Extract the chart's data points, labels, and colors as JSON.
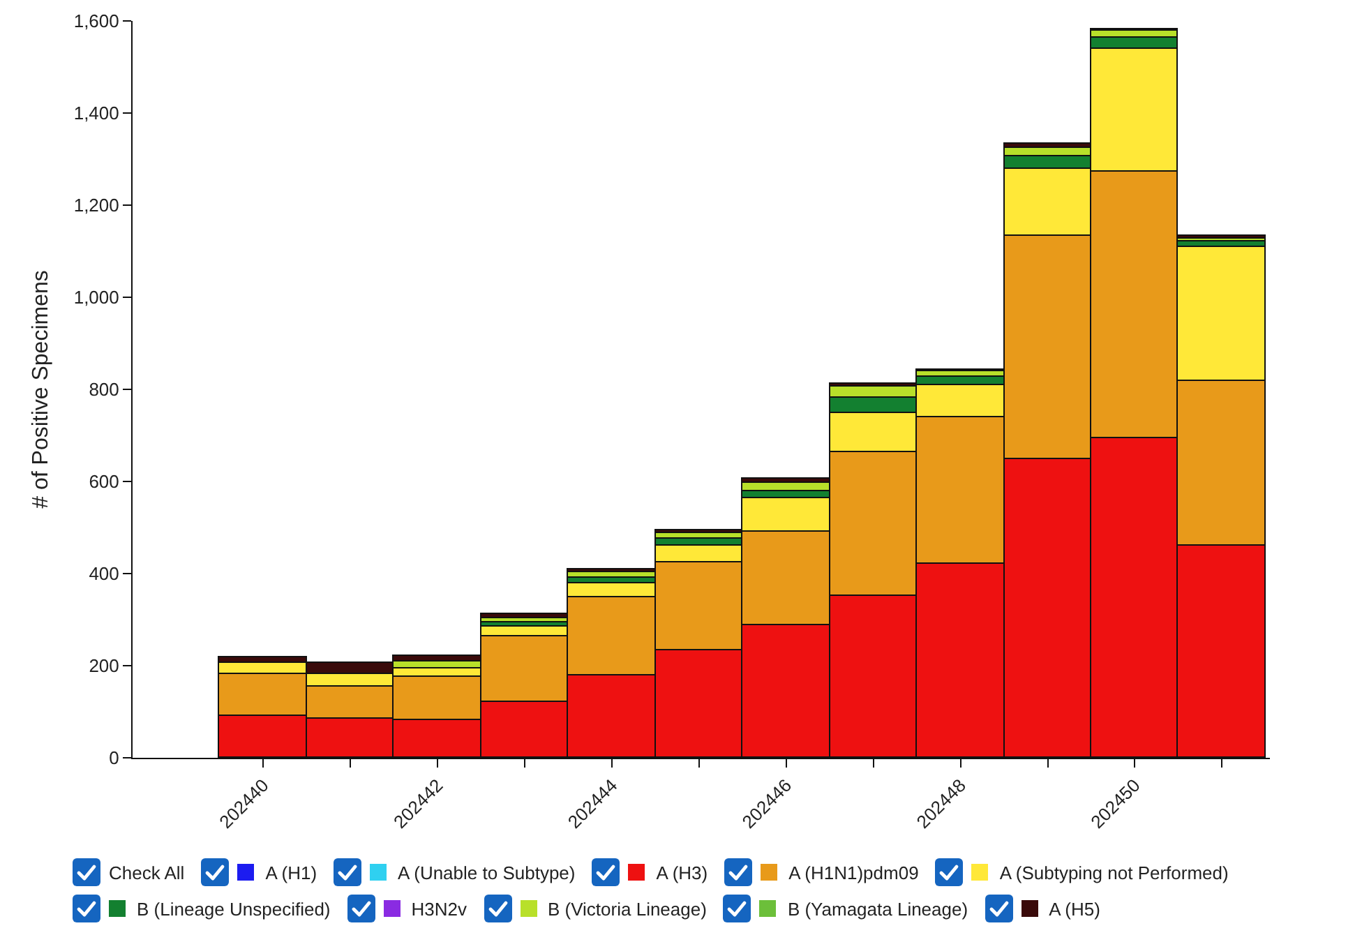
{
  "chart_data": {
    "type": "bar",
    "stacked": true,
    "ylabel": "# of Positive Specimens",
    "categories": [
      "202440",
      null,
      "202442",
      null,
      "202444",
      null,
      "202446",
      null,
      "202448",
      null,
      "202450",
      null
    ],
    "series": [
      {
        "name": "A (H1)",
        "color": "#1c1cf0",
        "values": [
          0,
          0,
          0,
          0,
          0,
          0,
          0,
          0,
          0,
          0,
          0,
          0
        ]
      },
      {
        "name": "A (Unable to Subtype)",
        "color": "#2fd0f0",
        "values": [
          0,
          0,
          0,
          0,
          0,
          0,
          0,
          0,
          0,
          0,
          0,
          0
        ]
      },
      {
        "name": "A (H3)",
        "color": "#ee1111",
        "values": [
          92,
          85,
          82,
          120,
          180,
          232,
          287,
          352,
          420,
          650,
          693,
          462
        ]
      },
      {
        "name": "A (H1N1)pdm09",
        "color": "#e89a1a",
        "values": [
          90,
          70,
          93,
          145,
          170,
          193,
          203,
          311,
          320,
          483,
          579,
          356
        ]
      },
      {
        "name": "A (Subtyping not Performed)",
        "color": "#ffe838",
        "values": [
          25,
          28,
          20,
          20,
          30,
          35,
          75,
          84,
          68,
          147,
          266,
          290
        ]
      },
      {
        "name": "B (Lineage Unspecified)",
        "color": "#138030",
        "values": [
          0,
          0,
          0,
          10,
          10,
          15,
          15,
          36,
          20,
          25,
          27,
          12
        ]
      },
      {
        "name": "H3N2v",
        "color": "#8a2be2",
        "values": [
          0,
          0,
          0,
          0,
          0,
          0,
          0,
          0,
          0,
          0,
          0,
          0
        ]
      },
      {
        "name": "B (Victoria Lineage)",
        "color": "#b8e02a",
        "values": [
          0,
          0,
          15,
          7,
          12,
          12,
          18,
          24,
          10,
          20,
          13,
          7
        ]
      },
      {
        "name": "B (Yamagata Lineage)",
        "color": "#6cbf3a",
        "values": [
          0,
          0,
          0,
          0,
          0,
          0,
          0,
          0,
          0,
          0,
          0,
          0
        ]
      },
      {
        "name": "A (H5)",
        "color": "#3a0a0a",
        "values": [
          10,
          22,
          12,
          10,
          8,
          8,
          7,
          5,
          5,
          7,
          5,
          5
        ]
      }
    ],
    "ylim": [
      0,
      1600
    ],
    "yticks": [
      0,
      200,
      400,
      600,
      800,
      {
        "value": 1000,
        "label": "1,000"
      },
      {
        "value": 1200,
        "label": "1,200"
      },
      {
        "value": 1400,
        "label": "1,400"
      },
      {
        "value": 1600,
        "label": "1,600"
      }
    ],
    "grid": false,
    "legend": "bottom",
    "annotations": [
      "Check All"
    ]
  }
}
